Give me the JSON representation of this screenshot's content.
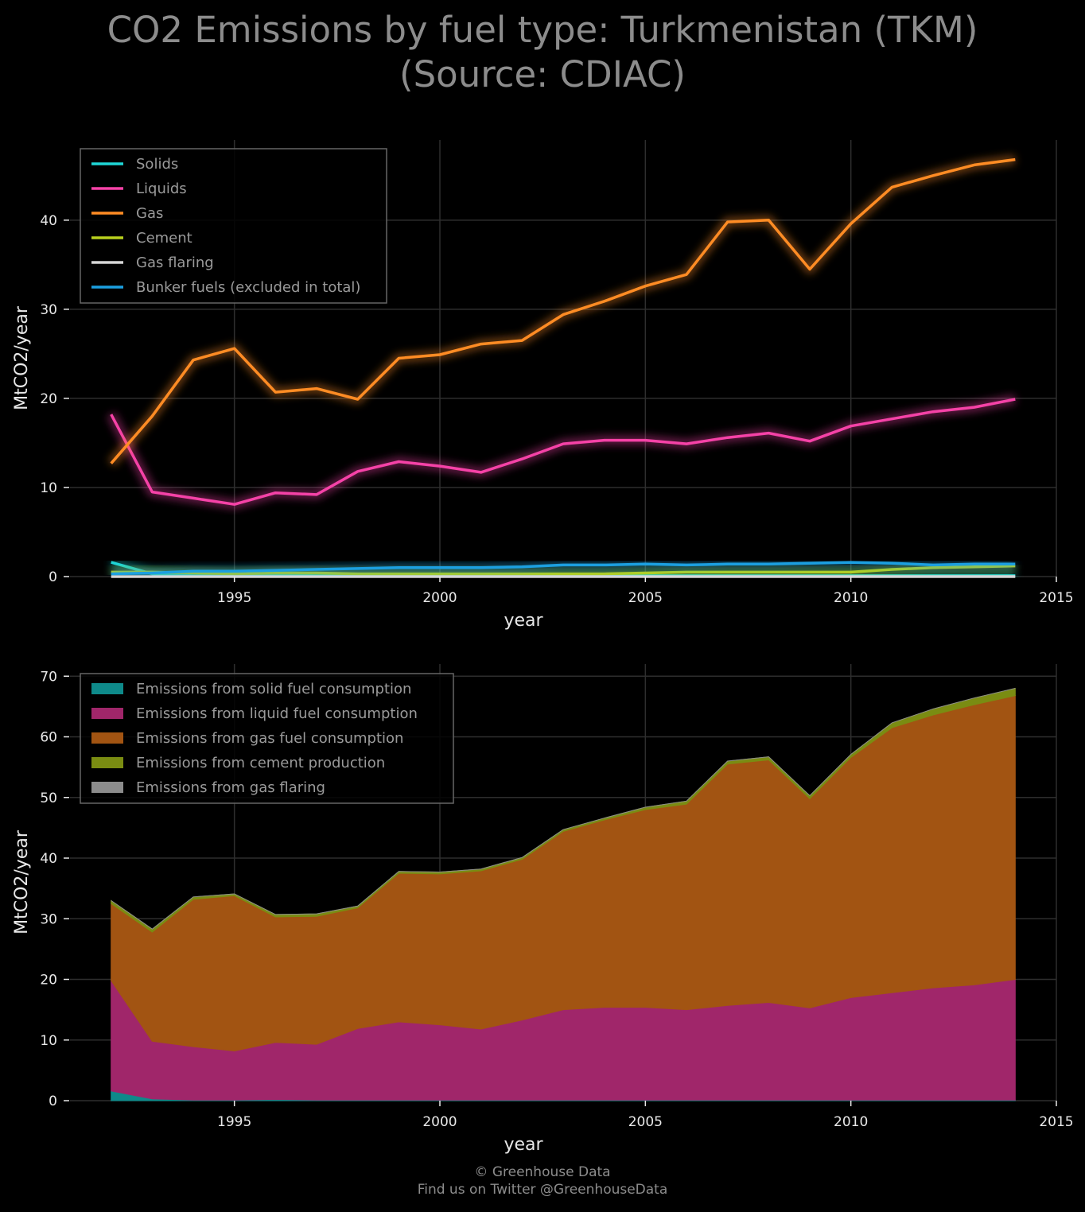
{
  "title": {
    "line1": "CO2 Emissions by fuel type: Turkmenistan (TKM)",
    "line2": "(Source: CDIAC)"
  },
  "footer": {
    "line1": "© Greenhouse Data",
    "line2": "Find us on Twitter @GreenhouseData"
  },
  "chart_data": [
    {
      "type": "line",
      "xlabel": "year",
      "ylabel": "MtCO2/year",
      "xlim": [
        1991,
        2015
      ],
      "ylim": [
        0,
        49
      ],
      "xticks": [
        1995,
        2000,
        2005,
        2010,
        2015
      ],
      "yticks": [
        0,
        10,
        20,
        30,
        40
      ],
      "grid": true,
      "legend_position": "top-left",
      "x": [
        1992,
        1993,
        1994,
        1995,
        1996,
        1997,
        1998,
        1999,
        2000,
        2001,
        2002,
        2003,
        2004,
        2005,
        2006,
        2007,
        2008,
        2009,
        2010,
        2011,
        2012,
        2013,
        2014
      ],
      "series": [
        {
          "name": "Solids",
          "color": "#1fd6d6",
          "values": [
            1.6,
            0.3,
            0.1,
            0.1,
            0.2,
            0.1,
            0.1,
            0.1,
            0.1,
            0.1,
            0.1,
            0.1,
            0.1,
            0.1,
            0.1,
            0.1,
            0.1,
            0.1,
            0.1,
            0.1,
            0.1,
            0.1,
            0.1
          ]
        },
        {
          "name": "Liquids",
          "color": "#f542a7",
          "values": [
            18.2,
            9.5,
            8.8,
            8.1,
            9.4,
            9.2,
            11.8,
            12.9,
            12.4,
            11.7,
            13.2,
            14.9,
            15.3,
            15.3,
            14.9,
            15.6,
            16.1,
            15.2,
            16.9,
            17.7,
            18.5,
            19.0,
            19.9
          ]
        },
        {
          "name": "Gas",
          "color": "#ff8c24",
          "values": [
            12.7,
            18.0,
            24.3,
            25.6,
            20.7,
            21.1,
            19.9,
            24.5,
            24.9,
            26.1,
            26.5,
            29.4,
            30.9,
            32.6,
            33.9,
            39.8,
            40.0,
            34.5,
            39.6,
            43.7,
            45.0,
            46.2,
            46.8
          ]
        },
        {
          "name": "Cement",
          "color": "#b8d01e",
          "values": [
            0.5,
            0.5,
            0.4,
            0.3,
            0.4,
            0.4,
            0.3,
            0.3,
            0.3,
            0.3,
            0.3,
            0.3,
            0.3,
            0.4,
            0.5,
            0.5,
            0.5,
            0.5,
            0.5,
            0.8,
            1.0,
            1.1,
            1.2
          ]
        },
        {
          "name": "Gas flaring",
          "color": "#d6d6d6",
          "values": [
            0,
            0,
            0,
            0,
            0,
            0,
            0,
            0,
            0,
            0,
            0,
            0,
            0,
            0,
            0,
            0,
            0,
            0,
            0,
            0,
            0,
            0,
            0
          ]
        },
        {
          "name": "Bunker fuels (excluded in total)",
          "color": "#1c9fe0",
          "values": [
            0.3,
            0.4,
            0.6,
            0.6,
            0.7,
            0.8,
            0.9,
            1.0,
            1.0,
            1.0,
            1.1,
            1.3,
            1.3,
            1.4,
            1.3,
            1.4,
            1.4,
            1.5,
            1.6,
            1.5,
            1.3,
            1.4,
            1.4
          ]
        }
      ]
    },
    {
      "type": "area",
      "stacked": true,
      "xlabel": "year",
      "ylabel": "MtCO2/year",
      "xlim": [
        1991,
        2015
      ],
      "ylim": [
        0,
        72
      ],
      "xticks": [
        1995,
        2000,
        2005,
        2010,
        2015
      ],
      "yticks": [
        0,
        10,
        20,
        30,
        40,
        50,
        60,
        70
      ],
      "grid": true,
      "legend_position": "top-left",
      "x": [
        1992,
        1993,
        1994,
        1995,
        1996,
        1997,
        1998,
        1999,
        2000,
        2001,
        2002,
        2003,
        2004,
        2005,
        2006,
        2007,
        2008,
        2009,
        2010,
        2011,
        2012,
        2013,
        2014
      ],
      "series": [
        {
          "name": "Emissions from solid fuel consumption",
          "color": "#0e8a8a",
          "values": [
            1.6,
            0.3,
            0.1,
            0.1,
            0.2,
            0.1,
            0.1,
            0.1,
            0.1,
            0.1,
            0.1,
            0.1,
            0.1,
            0.1,
            0.1,
            0.1,
            0.1,
            0.1,
            0.1,
            0.1,
            0.1,
            0.1,
            0.1
          ]
        },
        {
          "name": "Emissions from liquid fuel consumption",
          "color": "#a0266a",
          "values": [
            18.2,
            9.5,
            8.8,
            8.1,
            9.4,
            9.2,
            11.8,
            12.9,
            12.4,
            11.7,
            13.2,
            14.9,
            15.3,
            15.3,
            14.9,
            15.6,
            16.1,
            15.2,
            16.9,
            17.7,
            18.5,
            19.0,
            19.9
          ]
        },
        {
          "name": "Emissions from gas fuel consumption",
          "color": "#a25412",
          "values": [
            12.7,
            18.0,
            24.3,
            25.6,
            20.7,
            21.1,
            19.9,
            24.5,
            24.9,
            26.1,
            26.5,
            29.4,
            30.9,
            32.6,
            33.9,
            39.8,
            40.0,
            34.5,
            39.6,
            43.7,
            45.0,
            46.2,
            46.8
          ]
        },
        {
          "name": "Emissions from cement production",
          "color": "#7a8c12",
          "values": [
            0.5,
            0.5,
            0.4,
            0.3,
            0.4,
            0.4,
            0.3,
            0.3,
            0.3,
            0.3,
            0.3,
            0.3,
            0.3,
            0.4,
            0.5,
            0.5,
            0.5,
            0.5,
            0.5,
            0.8,
            1.0,
            1.1,
            1.2
          ]
        },
        {
          "name": "Emissions from gas flaring",
          "color": "#8c8c8c",
          "values": [
            0,
            0,
            0,
            0,
            0,
            0,
            0,
            0,
            0,
            0,
            0,
            0,
            0,
            0,
            0,
            0,
            0,
            0,
            0,
            0,
            0,
            0,
            0
          ]
        }
      ]
    }
  ]
}
